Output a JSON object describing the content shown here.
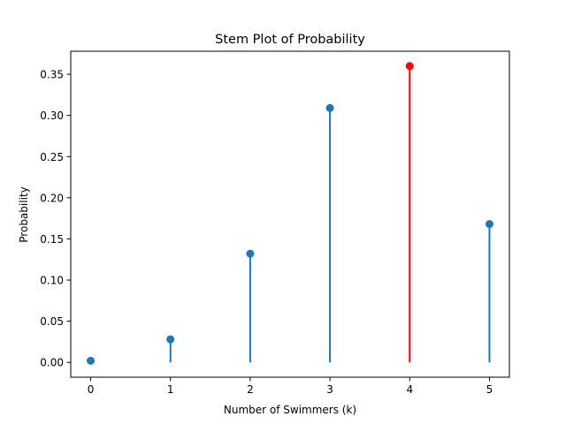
{
  "chart_data": {
    "type": "stem",
    "title": "Stem Plot of Probability",
    "xlabel": "Number of Swimmers (k)",
    "ylabel": "Probability",
    "x": [
      0,
      1,
      2,
      3,
      4,
      5
    ],
    "y": [
      0.002,
      0.028,
      0.132,
      0.309,
      0.36,
      0.168
    ],
    "highlight_index": 4,
    "xlim": [
      -0.25,
      5.25
    ],
    "ylim": [
      -0.018,
      0.378
    ],
    "xticks": [
      0,
      1,
      2,
      3,
      4,
      5
    ],
    "yticks": [
      0.0,
      0.05,
      0.1,
      0.15,
      0.2,
      0.25,
      0.3,
      0.35
    ],
    "xtick_labels": [
      "0",
      "1",
      "2",
      "3",
      "4",
      "5"
    ],
    "ytick_labels": [
      "0.00",
      "0.05",
      "0.10",
      "0.15",
      "0.20",
      "0.25",
      "0.30",
      "0.35"
    ],
    "grid": false,
    "colors": {
      "default": "#1f77b4",
      "highlight": "#ff0000"
    }
  }
}
